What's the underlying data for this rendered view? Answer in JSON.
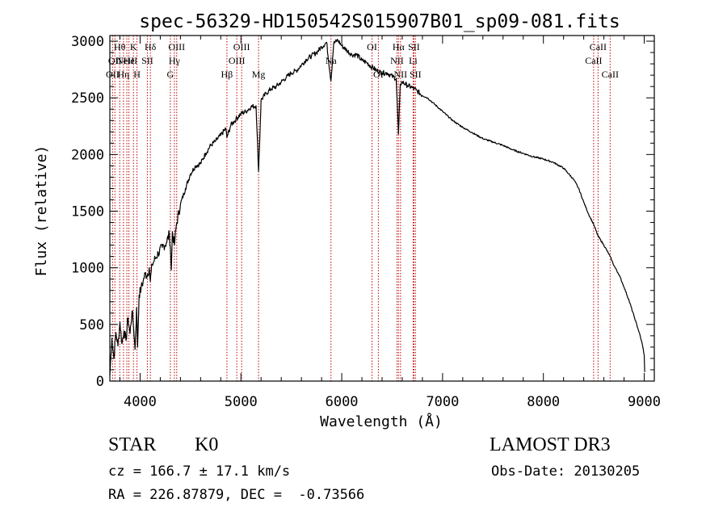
{
  "colors": {
    "background": "#ffffff",
    "foreground": "#000000",
    "line_marker": "#c00000"
  },
  "info": {
    "object_class": "STAR",
    "subclass": "K0",
    "survey": "LAMOST DR3",
    "redshift": "cz = 166.7 ± 17.1 km/s",
    "obs_date": "Obs-Date: 20130205",
    "coords": "RA = 226.87879, DEC =  -0.73566"
  },
  "chart_data": {
    "type": "line",
    "title": "spec-56329-HD150542S015907B01_sp09-081.fits",
    "xlabel": "Wavelength (Å)",
    "ylabel": "Flux (relative)",
    "xlim": [
      3700,
      9100
    ],
    "ylim": [
      0,
      3050
    ],
    "xticks": [
      4000,
      5000,
      6000,
      7000,
      8000,
      9000
    ],
    "yticks": [
      0,
      500,
      1000,
      1500,
      2000,
      2500,
      3000
    ],
    "grid": false,
    "series": [
      {
        "name": "spectrum",
        "x": [
          3700,
          3720,
          3740,
          3760,
          3780,
          3800,
          3820,
          3840,
          3860,
          3880,
          3900,
          3920,
          3935,
          3950,
          3965,
          3975,
          3990,
          4010,
          4030,
          4050,
          4070,
          4090,
          4101,
          4120,
          4150,
          4180,
          4220,
          4260,
          4290,
          4300,
          4310,
          4320,
          4340,
          4360,
          4400,
          4450,
          4500,
          4550,
          4600,
          4650,
          4700,
          4750,
          4800,
          4850,
          4861,
          4900,
          4950,
          5000,
          5050,
          5100,
          5150,
          5175,
          5200,
          5250,
          5300,
          5350,
          5400,
          5450,
          5500,
          5550,
          5600,
          5650,
          5700,
          5750,
          5800,
          5850,
          5893,
          5920,
          5960,
          6000,
          6050,
          6100,
          6150,
          6200,
          6250,
          6300,
          6350,
          6400,
          6450,
          6500,
          6540,
          6563,
          6580,
          6600,
          6650,
          6700,
          6750,
          6800,
          6850,
          6900,
          7000,
          7100,
          7200,
          7300,
          7400,
          7500,
          7600,
          7700,
          7800,
          7900,
          8000,
          8100,
          8200,
          8300,
          8350,
          8400,
          8450,
          8500,
          8542,
          8600,
          8662,
          8700,
          8750,
          8800,
          8850,
          8900,
          8950,
          8980,
          9000,
          9005
        ],
        "values": [
          50,
          380,
          200,
          430,
          310,
          520,
          330,
          440,
          360,
          560,
          420,
          620,
          480,
          280,
          650,
          300,
          760,
          820,
          880,
          950,
          930,
          1000,
          880,
          1030,
          1080,
          1130,
          1180,
          1220,
          1300,
          1180,
          980,
          1320,
          1200,
          1380,
          1560,
          1700,
          1830,
          1900,
          1920,
          2010,
          2080,
          2120,
          2170,
          2230,
          2150,
          2260,
          2310,
          2360,
          2380,
          2420,
          2430,
          1850,
          2480,
          2540,
          2580,
          2600,
          2640,
          2680,
          2720,
          2740,
          2790,
          2840,
          2870,
          2900,
          2950,
          2990,
          2650,
          2980,
          3010,
          2960,
          2920,
          2880,
          2880,
          2830,
          2810,
          2770,
          2740,
          2720,
          2720,
          2690,
          2670,
          2180,
          2620,
          2640,
          2610,
          2590,
          2560,
          2520,
          2500,
          2460,
          2380,
          2300,
          2240,
          2190,
          2140,
          2110,
          2080,
          2040,
          2010,
          1980,
          1960,
          1930,
          1880,
          1780,
          1700,
          1580,
          1470,
          1380,
          1280,
          1200,
          1100,
          1020,
          940,
          830,
          710,
          570,
          430,
          330,
          230,
          80
        ]
      }
    ],
    "lines": [
      {
        "wl": 3727,
        "label": "OII",
        "row": 2
      },
      {
        "wl": 3750,
        "label": "OII",
        "row": 1
      },
      {
        "wl": 3798,
        "label": "Hθ",
        "row": 0
      },
      {
        "wl": 3835,
        "label": "Hη",
        "row": 2
      },
      {
        "wl": 3869,
        "label": "NeIII",
        "row": 1
      },
      {
        "wl": 3889,
        "label": "He",
        "row": 1
      },
      {
        "wl": 3934,
        "label": "K",
        "row": 0
      },
      {
        "wl": 3969,
        "label": "H",
        "row": 2
      },
      {
        "wl": 4072,
        "label": "SII",
        "row": 1
      },
      {
        "wl": 4102,
        "label": "Hδ",
        "row": 0
      },
      {
        "wl": 4300,
        "label": "G",
        "row": 2
      },
      {
        "wl": 4340,
        "label": "Hγ",
        "row": 1
      },
      {
        "wl": 4363,
        "label": "OIII",
        "row": 0
      },
      {
        "wl": 4861,
        "label": "Hβ",
        "row": 2
      },
      {
        "wl": 4959,
        "label": "OIII",
        "row": 1
      },
      {
        "wl": 5007,
        "label": "OIII",
        "row": 0
      },
      {
        "wl": 5175,
        "label": "Mg",
        "row": 2
      },
      {
        "wl": 5893,
        "label": "Na",
        "row": 1
      },
      {
        "wl": 6300,
        "label": "OI",
        "row": 0
      },
      {
        "wl": 6363,
        "label": "OI",
        "row": 2
      },
      {
        "wl": 6548,
        "label": "NII",
        "row": 1
      },
      {
        "wl": 6563,
        "label": "Hα",
        "row": 0
      },
      {
        "wl": 6583,
        "label": "NII",
        "row": 2
      },
      {
        "wl": 6708,
        "label": "Li",
        "row": 1
      },
      {
        "wl": 6716,
        "label": "SII",
        "row": 0
      },
      {
        "wl": 6731,
        "label": "SII",
        "row": 2
      },
      {
        "wl": 8498,
        "label": "CaII",
        "row": 1
      },
      {
        "wl": 8542,
        "label": "CaII",
        "row": 0
      },
      {
        "wl": 8662,
        "label": "CaII",
        "row": 2
      }
    ]
  }
}
